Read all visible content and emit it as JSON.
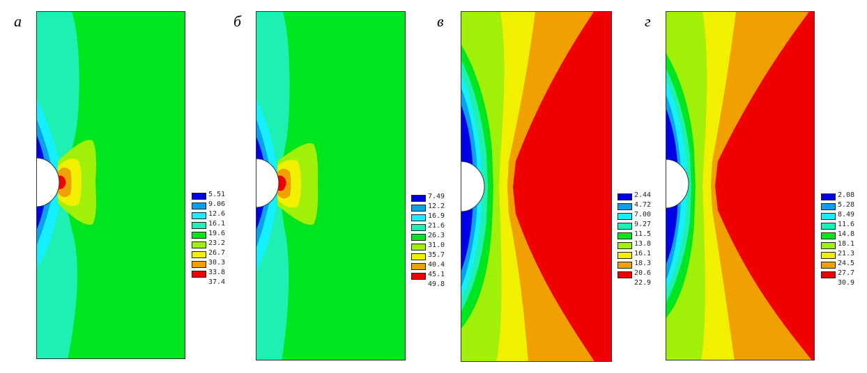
{
  "colors": [
    "#0000e6",
    "#0aa0f0",
    "#14f0ff",
    "#1ef0b4",
    "#00e61e",
    "#a0f00a",
    "#f0f000",
    "#f0a000",
    "#f00000"
  ],
  "panels": [
    {
      "id": "a",
      "label": "а",
      "legend": [
        "5.51",
        "9.06",
        "12.6",
        "16.1",
        "19.6",
        "23.2",
        "26.7",
        "30.3",
        "33.8",
        "37.4"
      ]
    },
    {
      "id": "b",
      "label": "б",
      "legend": [
        "7.49",
        "12.2",
        "16.9",
        "21.6",
        "26.3",
        "31.0",
        "35.7",
        "40.4",
        "45.1",
        "49.8"
      ]
    },
    {
      "id": "v",
      "label": "в",
      "legend": [
        "2.44",
        "4.72",
        "7.00",
        "9.27",
        "11.5",
        "13.8",
        "16.1",
        "18.3",
        "20.6",
        "22.9"
      ]
    },
    {
      "id": "g",
      "label": "г",
      "legend": [
        "2.08",
        "5.28",
        "8.49",
        "11.6",
        "14.8",
        "18.1",
        "21.3",
        "24.5",
        "27.7",
        "30.9"
      ]
    }
  ]
}
